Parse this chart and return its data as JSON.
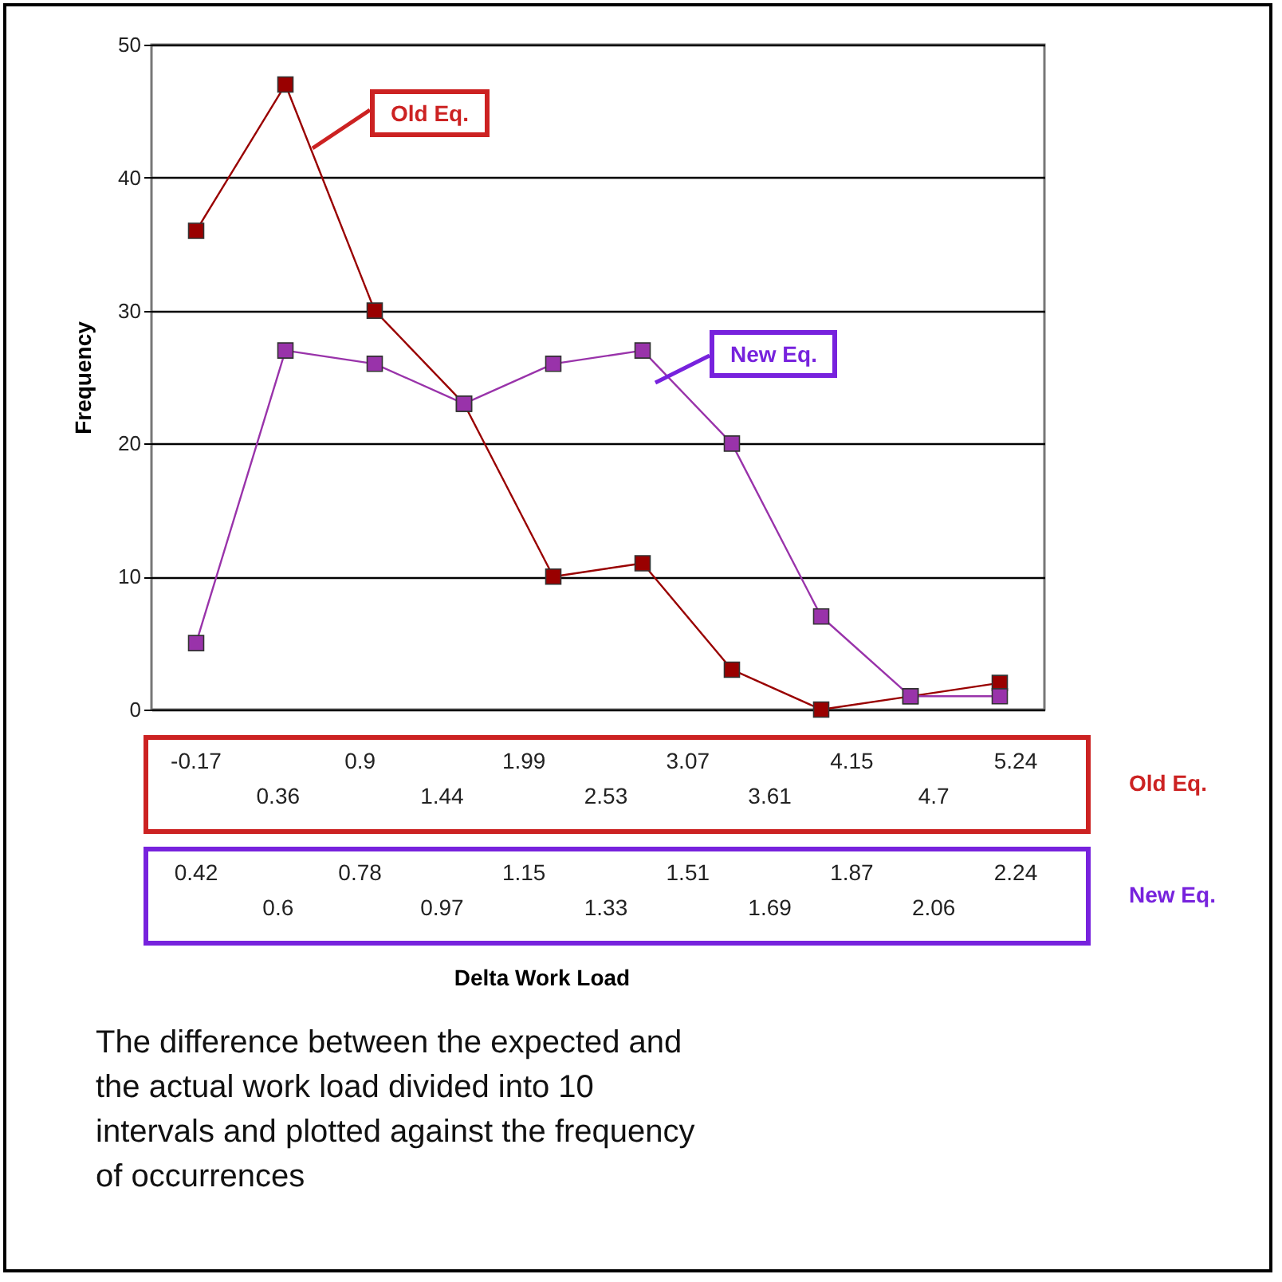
{
  "chart_data": {
    "type": "line",
    "ylabel": "Frequency",
    "categories": [
      null,
      null,
      null,
      null,
      null,
      null,
      null,
      null,
      null,
      null
    ],
    "series": [
      {
        "name": "Old Eq.",
        "color": "#990000",
        "values": [
          36,
          47,
          30,
          23,
          10,
          11,
          3,
          0,
          1,
          2
        ]
      },
      {
        "name": "New Eq.",
        "color": "#9933aa",
        "values": [
          5,
          27,
          26,
          23,
          26,
          27,
          20,
          7,
          1,
          1
        ]
      }
    ],
    "ylim": [
      0,
      50
    ],
    "yticks": [
      0,
      10,
      20,
      30,
      40,
      50
    ],
    "grid": "y",
    "marker": "square",
    "legend": false,
    "tick_labels": "y",
    "annotations": [
      "-0.17",
      "0.36",
      "0.9",
      "1.44",
      "1.99",
      "2.53",
      "3.07",
      "3.61",
      "4.15",
      "4.7",
      "5.24",
      "0.42",
      "0.6",
      "0.78",
      "0.97",
      "1.15",
      "1.33",
      "1.51",
      "1.69",
      "1.87",
      "2.06",
      "2.24",
      "Delta Work Load",
      "The difference between the expected and the actual work load divided into 10 intervals and plotted against the frequency of occurrences"
    ]
  }
}
